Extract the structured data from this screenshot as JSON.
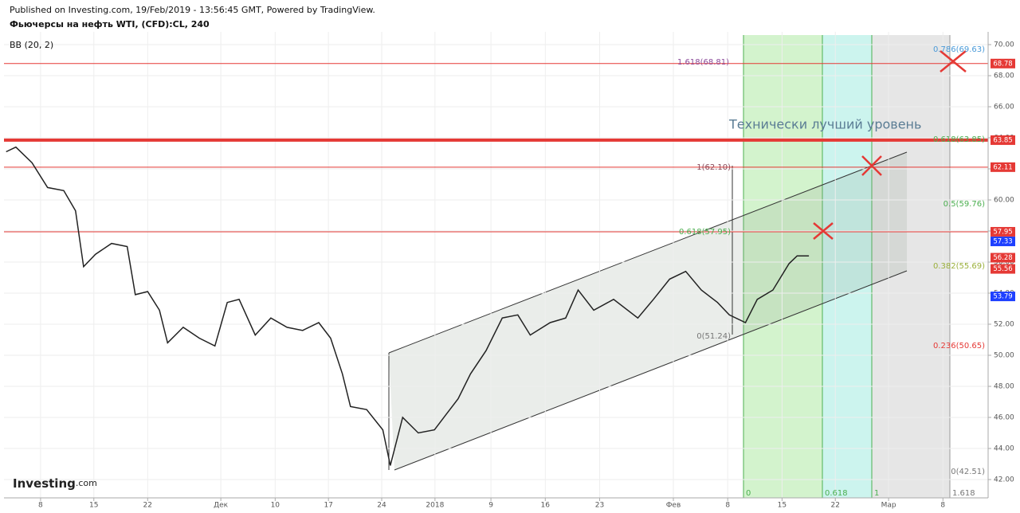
{
  "header": {
    "published": "Published on Investing.com, 19/Feb/2019 - 13:56:45 GMT, Powered by TradingView.",
    "symbol": "Фьючерсы на нефть WTI, (CFD):CL, 240",
    "indicator": "BB (20, 2)",
    "logo": "Investing",
    "logo_suffix": ".com"
  },
  "chart_data": {
    "type": "line",
    "color": "#222222",
    "annotation": "Технически лучший уровень",
    "x": [
      -0.64,
      -0.46,
      -0.16,
      0.13,
      0.43,
      0.65,
      0.8,
      1.02,
      1.32,
      1.61,
      1.76,
      1.99,
      2.21,
      2.36,
      2.65,
      2.95,
      3.24,
      3.47,
      3.69,
      3.99,
      4.28,
      4.58,
      4.87,
      5.17,
      5.39,
      5.61,
      5.76,
      6.06,
      6.36,
      6.5,
      6.73,
      7.02,
      7.32,
      7.54,
      7.76,
      7.99,
      8.28,
      8.58,
      8.87,
      9.1,
      9.47,
      9.76,
      9.99,
      10.28,
      10.65,
      11.1,
      11.39,
      11.69,
      11.99,
      12.28,
      12.58,
      12.8,
      13.1,
      13.32,
      13.61,
      13.91,
      14.06,
      14.28
    ],
    "values": [
      63.1,
      63.4,
      62.4,
      60.8,
      60.6,
      59.3,
      55.7,
      56.5,
      57.2,
      57.0,
      53.9,
      54.1,
      52.9,
      50.8,
      51.8,
      51.1,
      50.6,
      53.4,
      53.6,
      51.3,
      52.4,
      51.8,
      51.6,
      52.1,
      51.1,
      48.8,
      46.7,
      46.5,
      45.2,
      42.9,
      46.0,
      45.0,
      45.2,
      46.2,
      47.2,
      48.8,
      50.3,
      52.4,
      52.6,
      51.3,
      52.1,
      52.4,
      54.2,
      52.9,
      53.6,
      52.4,
      53.6,
      54.9,
      55.4,
      54.2,
      53.4,
      52.6,
      52.1,
      53.6,
      54.2,
      55.9,
      56.4,
      56.4
    ],
    "xlim": [
      -0.68,
      17.61
    ],
    "xticks": [
      {
        "value": 0,
        "label": "8"
      },
      {
        "value": 0.99,
        "label": "15"
      },
      {
        "value": 1.99,
        "label": "22"
      },
      {
        "value": 3.35,
        "label": "Дек"
      },
      {
        "value": 4.36,
        "label": "10"
      },
      {
        "value": 5.35,
        "label": "17"
      },
      {
        "value": 6.34,
        "label": "24"
      },
      {
        "value": 7.33,
        "label": "2018"
      },
      {
        "value": 8.37,
        "label": "9"
      },
      {
        "value": 9.38,
        "label": "16"
      },
      {
        "value": 10.39,
        "label": "23"
      },
      {
        "value": 11.76,
        "label": "Фев"
      },
      {
        "value": 12.77,
        "label": "8"
      },
      {
        "value": 13.78,
        "label": "15"
      },
      {
        "value": 14.77,
        "label": "22"
      },
      {
        "value": 15.76,
        "label": "Мар"
      },
      {
        "value": 16.77,
        "label": "8"
      }
    ],
    "ylim": [
      40.82,
      70.82
    ],
    "yticks": [
      {
        "value": 42,
        "label": "42.00"
      },
      {
        "value": 44,
        "label": "44.00"
      },
      {
        "value": 46,
        "label": "46.00"
      },
      {
        "value": 48,
        "label": "48.00"
      },
      {
        "value": 50,
        "label": "50.00"
      },
      {
        "value": 52,
        "label": "52.00"
      },
      {
        "value": 54,
        "label": "54.00"
      },
      {
        "value": 56,
        "label": "56.00"
      },
      {
        "value": 58,
        "label": "58.00"
      },
      {
        "value": 60,
        "label": "60.00"
      },
      {
        "value": 62,
        "label": "62.00"
      },
      {
        "value": 64,
        "label": "64.00"
      },
      {
        "value": 66,
        "label": "66.00"
      },
      {
        "value": 68,
        "label": "68.00"
      },
      {
        "value": 70,
        "label": "70.00"
      }
    ],
    "grid": true,
    "levels": [
      {
        "value": 68.78,
        "width": 1
      },
      {
        "value": 63.85,
        "width": 4
      },
      {
        "value": 62.11,
        "width": 1
      },
      {
        "value": 57.95,
        "width": 1
      }
    ],
    "level_color": "#e53935",
    "price_labels": [
      {
        "value": 68.78,
        "color": "#e53935"
      },
      {
        "value": 63.85,
        "color": "#e53935"
      },
      {
        "value": 62.11,
        "color": "#e53935"
      },
      {
        "value": 57.95,
        "color": "#e53935"
      },
      {
        "value": 57.33,
        "color": "#1e40ff"
      },
      {
        "value": 56.28,
        "color": "#e53935"
      },
      {
        "value": 55.56,
        "color": "#e53935"
      },
      {
        "value": 53.79,
        "color": "#1e40ff"
      }
    ],
    "fib_labels": [
      "1.618(68.81)",
      "0.786(69.63)",
      "0.618(63.85)",
      "1(62.10)",
      "0.5(59.76)",
      "0.618(57.95)",
      "0.382(55.69)",
      "0(51.24)",
      "0.236(50.65)",
      "0(42.51)"
    ],
    "time_fib_labels": [
      "0",
      "0.618",
      "1",
      "1.618"
    ]
  }
}
